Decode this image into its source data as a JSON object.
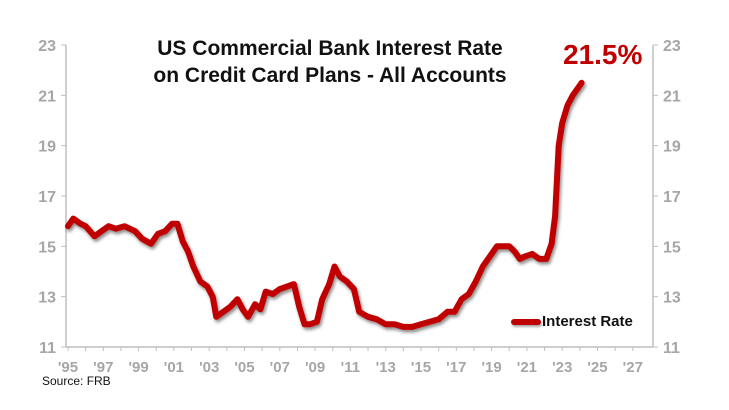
{
  "chart_data": {
    "type": "line",
    "title": "US Commercial Bank Interest Rate on Credit Card Plans - All Accounts",
    "title_lines": [
      "US Commercial Bank Interest Rate",
      "on Credit Card Plans - All Accounts"
    ],
    "annotation": "21.5%",
    "xlabel": "",
    "ylabel": "",
    "ylim": [
      11,
      23
    ],
    "xlim": [
      1995,
      2028
    ],
    "y_ticks": [
      11,
      13,
      15,
      17,
      19,
      21,
      23
    ],
    "y_tick_labels": [
      "11",
      "13",
      "15",
      "17",
      "19",
      "21",
      "23"
    ],
    "x_tick_labels": [
      "'95",
      "'97",
      "'99",
      "'01",
      "'03",
      "'05",
      "'07",
      "'09",
      "'11",
      "'13",
      "'15",
      "'17",
      "'19",
      "'21",
      "'23",
      "'25",
      "'27"
    ],
    "x_tick_years": [
      1995,
      1997,
      1999,
      2001,
      2003,
      2005,
      2007,
      2009,
      2011,
      2013,
      2015,
      2017,
      2019,
      2021,
      2023,
      2025,
      2027
    ],
    "grid": false,
    "dual_y_axis": true,
    "legend_position": "bottom-right",
    "series": [
      {
        "name": "Interest Rate",
        "color": "#c00000",
        "x": [
          1995.0,
          1995.3,
          1995.7,
          1996.0,
          1996.5,
          1996.9,
          1997.3,
          1997.7,
          1998.2,
          1998.8,
          1999.2,
          1999.7,
          2000.1,
          2000.5,
          2000.9,
          2001.2,
          2001.5,
          2001.8,
          2002.1,
          2002.5,
          2002.9,
          2003.2,
          2003.4,
          2003.8,
          2004.2,
          2004.6,
          2004.9,
          2005.2,
          2005.6,
          2005.9,
          2006.2,
          2006.6,
          2007.0,
          2007.4,
          2007.8,
          2008.1,
          2008.4,
          2008.7,
          2009.1,
          2009.4,
          2009.8,
          2010.1,
          2010.4,
          2010.8,
          2011.2,
          2011.5,
          2012.0,
          2012.5,
          2013.0,
          2013.5,
          2014.0,
          2014.5,
          2015.0,
          2015.5,
          2016.0,
          2016.5,
          2016.9,
          2017.3,
          2017.7,
          2018.1,
          2018.5,
          2018.9,
          2019.3,
          2019.7,
          2020.0,
          2020.3,
          2020.6,
          2020.9,
          2021.3,
          2021.7,
          2022.1,
          2022.4,
          2022.6,
          2022.8,
          2023.0,
          2023.3,
          2023.6,
          2023.9,
          2024.1
        ],
        "values": [
          15.8,
          16.1,
          15.9,
          15.8,
          15.4,
          15.6,
          15.8,
          15.7,
          15.8,
          15.6,
          15.3,
          15.1,
          15.5,
          15.6,
          15.9,
          15.9,
          15.2,
          14.8,
          14.2,
          13.6,
          13.4,
          13.0,
          12.2,
          12.4,
          12.6,
          12.9,
          12.5,
          12.2,
          12.7,
          12.5,
          13.2,
          13.1,
          13.3,
          13.4,
          13.5,
          12.6,
          11.9,
          11.9,
          12.0,
          12.9,
          13.5,
          14.2,
          13.8,
          13.6,
          13.3,
          12.4,
          12.2,
          12.1,
          11.9,
          11.9,
          11.8,
          11.8,
          11.9,
          12.0,
          12.1,
          12.4,
          12.4,
          12.9,
          13.1,
          13.6,
          14.2,
          14.6,
          15.0,
          15.0,
          15.0,
          14.8,
          14.5,
          14.6,
          14.7,
          14.5,
          14.5,
          15.1,
          16.2,
          19.0,
          19.9,
          20.6,
          21.0,
          21.3,
          21.5
        ]
      }
    ],
    "source": "Source: FRB"
  },
  "legend": {
    "label": "Interest Rate"
  },
  "footer": {
    "source": "Source: FRB"
  },
  "colors": {
    "line": "#c00000",
    "axis": "#bfbfbf",
    "tick_label": "#a6a6a6",
    "title": "#111111",
    "annotation": "#c00000"
  }
}
